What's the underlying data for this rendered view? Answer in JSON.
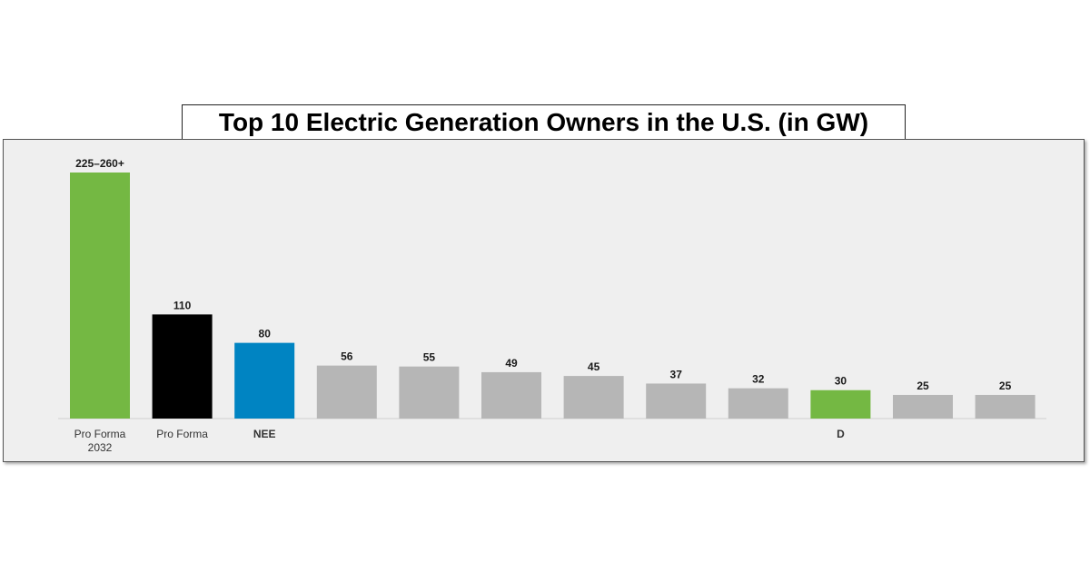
{
  "title": "Top 10 Electric Generation Owners in the U.S. (in GW)",
  "chart_data": {
    "type": "bar",
    "title": "Top 10 Electric Generation Owners in the U.S. (in GW)",
    "xlabel": "",
    "ylabel": "",
    "ylim": [
      0,
      260
    ],
    "grid": false,
    "categories": [
      [
        "Pro Forma",
        "2032"
      ],
      [
        "Pro Forma"
      ],
      [
        "NEE"
      ],
      [],
      [],
      [],
      [],
      [],
      [],
      [
        "D"
      ],
      [],
      []
    ],
    "values": [
      260,
      110,
      80,
      56,
      55,
      49,
      45,
      37,
      32,
      30,
      25,
      25
    ],
    "value_labels": [
      "225–260+",
      "110",
      "80",
      "56",
      "55",
      "49",
      "45",
      "37",
      "32",
      "30",
      "25",
      "25"
    ],
    "bar_colors": [
      "#74b843",
      "#000000",
      "#0084c2",
      "#b6b6b6",
      "#b6b6b6",
      "#b6b6b6",
      "#b6b6b6",
      "#b6b6b6",
      "#b6b6b6",
      "#74b843",
      "#b6b6b6",
      "#b6b6b6"
    ],
    "label_colors": [
      "#333333",
      "#333333",
      "#0084c2",
      "#333333",
      "#333333",
      "#333333",
      "#333333",
      "#333333",
      "#333333",
      "#74b843",
      "#333333",
      "#333333"
    ],
    "label_bold": [
      false,
      false,
      true,
      false,
      false,
      false,
      false,
      false,
      false,
      true,
      false,
      false
    ]
  },
  "colors": {
    "panel_background": "#efefef",
    "axis_line": "#cfcfcf"
  }
}
